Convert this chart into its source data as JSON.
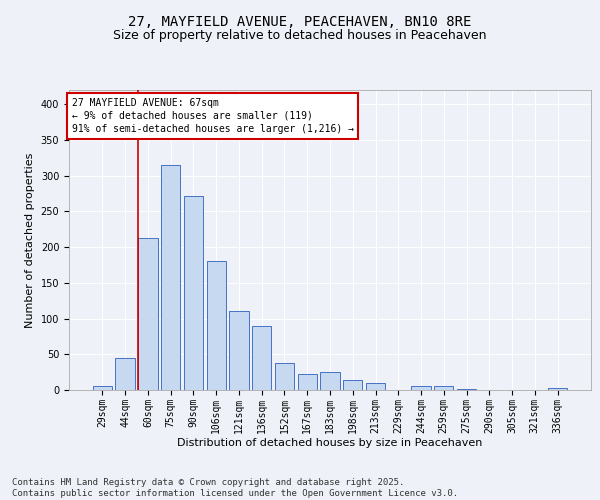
{
  "title_line1": "27, MAYFIELD AVENUE, PEACEHAVEN, BN10 8RE",
  "title_line2": "Size of property relative to detached houses in Peacehaven",
  "xlabel": "Distribution of detached houses by size in Peacehaven",
  "ylabel": "Number of detached properties",
  "categories": [
    "29sqm",
    "44sqm",
    "60sqm",
    "75sqm",
    "90sqm",
    "106sqm",
    "121sqm",
    "136sqm",
    "152sqm",
    "167sqm",
    "183sqm",
    "198sqm",
    "213sqm",
    "229sqm",
    "244sqm",
    "259sqm",
    "275sqm",
    "290sqm",
    "305sqm",
    "321sqm",
    "336sqm"
  ],
  "values": [
    5,
    45,
    213,
    315,
    272,
    180,
    110,
    90,
    38,
    23,
    25,
    14,
    10,
    0,
    6,
    6,
    2,
    0,
    0,
    0,
    3
  ],
  "bar_color": "#c6d9f0",
  "bar_edge_color": "#4472c4",
  "vline_x": 2,
  "vline_color": "#cc0000",
  "annotation_text": "27 MAYFIELD AVENUE: 67sqm\n← 9% of detached houses are smaller (119)\n91% of semi-detached houses are larger (1,216) →",
  "annotation_box_color": "#ffffff",
  "annotation_box_edge": "#cc0000",
  "ylim": [
    0,
    420
  ],
  "yticks": [
    0,
    50,
    100,
    150,
    200,
    250,
    300,
    350,
    400
  ],
  "footer_text": "Contains HM Land Registry data © Crown copyright and database right 2025.\nContains public sector information licensed under the Open Government Licence v3.0.",
  "bg_color": "#eef2f8",
  "plot_bg_color": "#eef2f8",
  "grid_color": "#ffffff",
  "title_fontsize": 10,
  "subtitle_fontsize": 9,
  "axis_label_fontsize": 8,
  "tick_fontsize": 7,
  "annotation_fontsize": 7,
  "footer_fontsize": 6.5
}
